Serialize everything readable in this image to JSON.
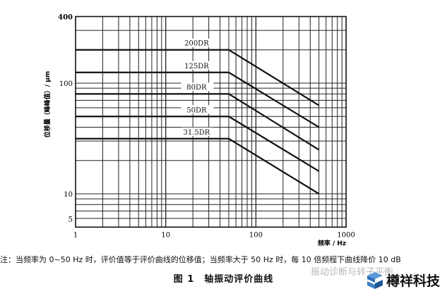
{
  "chart_data": {
    "type": "line",
    "title": "",
    "xlabel": "频率 / Hz",
    "ylabel": "位移量（峰峰值）/ μm",
    "xscale": "log",
    "yscale": "log",
    "xlim": [
      1,
      1000
    ],
    "ylim": [
      5,
      400
    ],
    "xticks": [
      "1",
      "10",
      "100",
      "1000"
    ],
    "yticks": [
      "5",
      "10",
      "100",
      "400"
    ],
    "grid": true,
    "series": [
      {
        "name": "200DR",
        "x": [
          1,
          50,
          500
        ],
        "y": [
          200,
          200,
          63
        ]
      },
      {
        "name": "125DR",
        "x": [
          1,
          50,
          500
        ],
        "y": [
          125,
          125,
          40
        ]
      },
      {
        "name": "80DR",
        "x": [
          1,
          50,
          500
        ],
        "y": [
          80,
          80,
          25
        ]
      },
      {
        "name": "50DR",
        "x": [
          1,
          50,
          500
        ],
        "y": [
          50,
          50,
          16
        ]
      },
      {
        "name": "31.5DR",
        "x": [
          1,
          50,
          500
        ],
        "y": [
          31.5,
          31.5,
          10
        ]
      }
    ],
    "color": "#111111"
  },
  "note": "注：当频率为 0~50 Hz 时，评价值等于评价曲线的位移值；当频率大于 50 Hz 时，每 10 倍频程下曲线降价 10 dB",
  "caption": "图 1　轴振动评价曲线",
  "watermark": "振动诊断与转子平衡",
  "logo": {
    "text": "樽祥科技",
    "color": "#2a6fb8"
  }
}
